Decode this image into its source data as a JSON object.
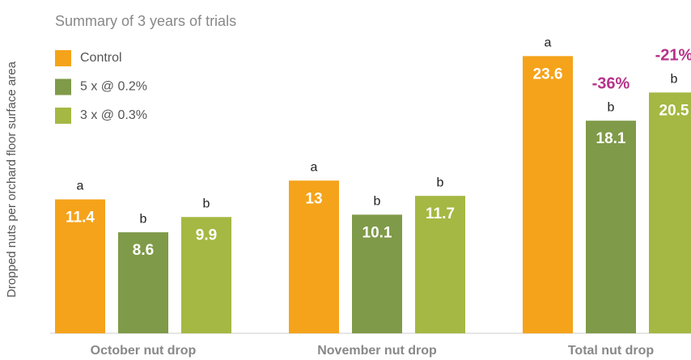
{
  "chart_data": {
    "type": "bar",
    "title": "Summary of 3 years of trials",
    "ylabel": "Dropped nuts per orchard floor surface area",
    "categories": [
      "October nut drop",
      "November nut drop",
      "Total nut drop"
    ],
    "series": [
      {
        "name": "Control",
        "color": "#f5a31a",
        "values": [
          11.4,
          13,
          23.6
        ],
        "letters": [
          "a",
          "a",
          "a"
        ]
      },
      {
        "name": "5 x @ 0.2%",
        "color": "#7f9a48",
        "values": [
          8.6,
          10.1,
          18.1
        ],
        "letters": [
          "b",
          "b",
          "b"
        ]
      },
      {
        "name": "3 x @ 0.3%",
        "color": "#a5b843",
        "values": [
          9.9,
          11.7,
          20.5
        ],
        "letters": [
          "b",
          "b",
          "b"
        ]
      }
    ],
    "annotations": [
      "-36%",
      "-21%"
    ],
    "ylim": [
      0,
      25
    ],
    "legend": "upper-left"
  }
}
